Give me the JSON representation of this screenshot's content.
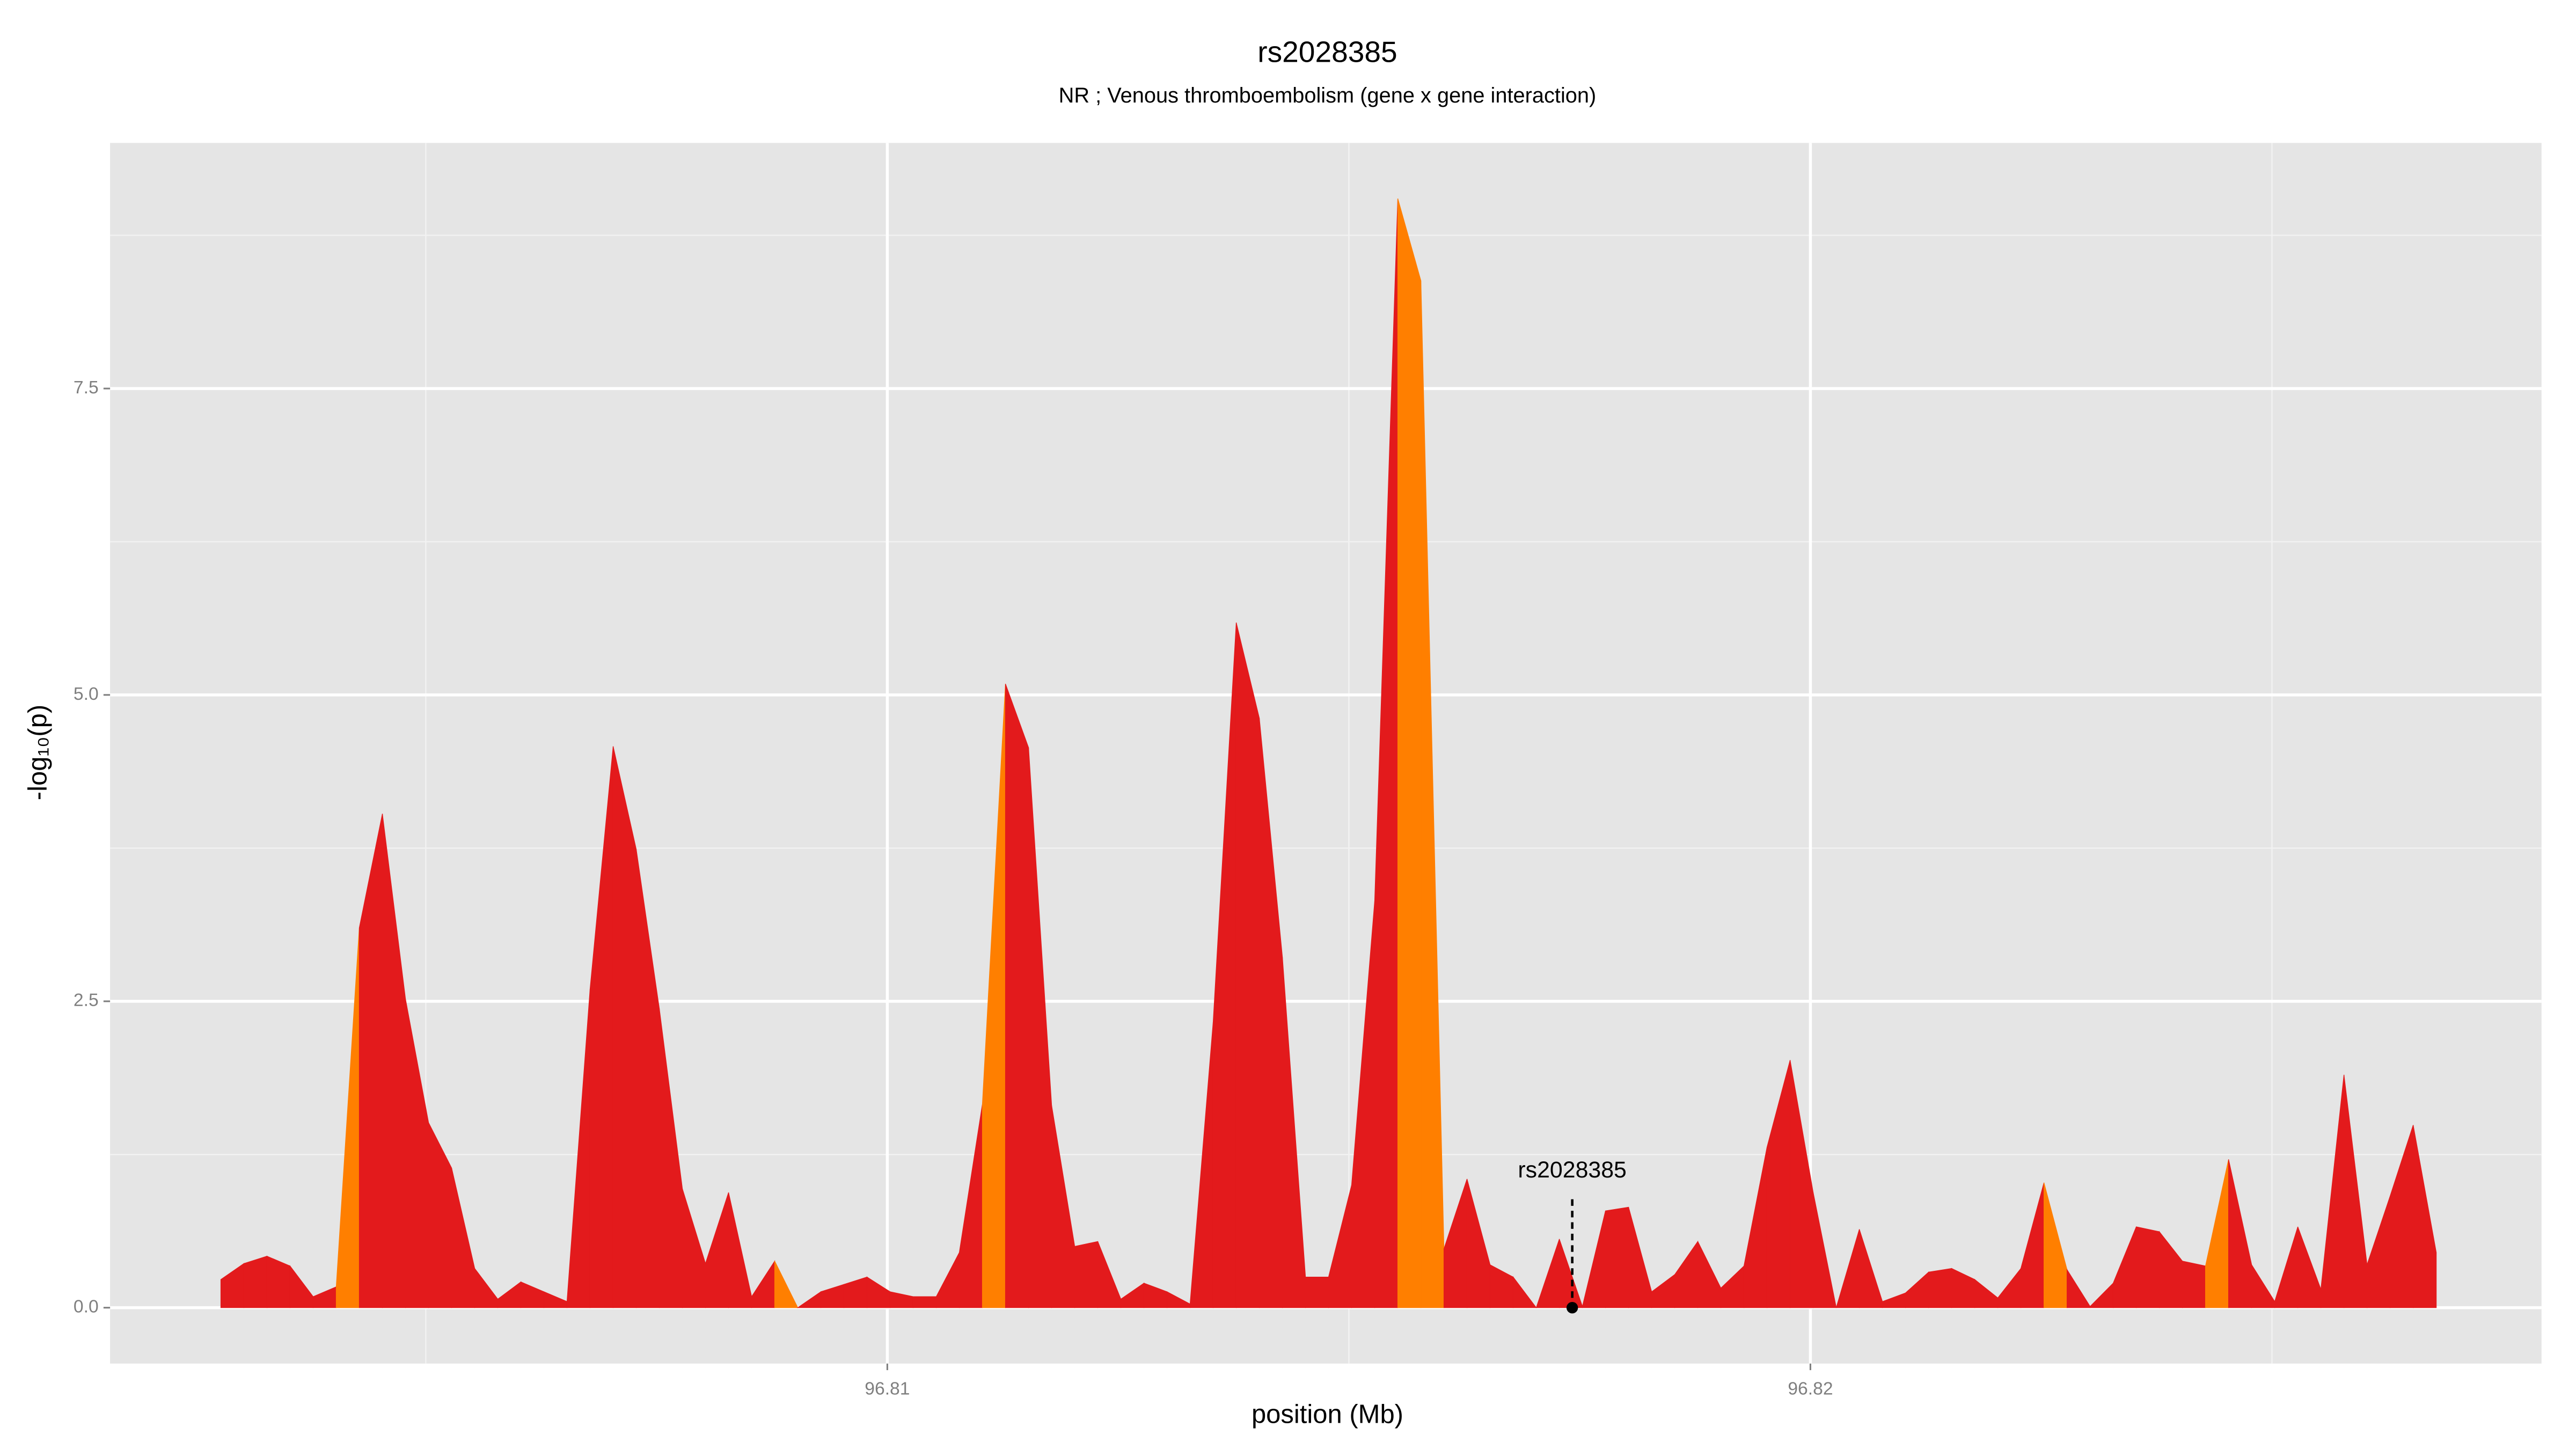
{
  "chart_data": {
    "type": "area",
    "title": "rs2028385",
    "subtitle": "NR ; Venous thromboembolism (gene x gene interaction)",
    "x_label": "position (Mb)",
    "y_label": "-log₁₀(p)",
    "x": [
      96.80278,
      96.80303,
      96.80328,
      96.80353,
      96.80378,
      96.80403,
      96.80428,
      96.80453,
      96.80478,
      96.80503,
      96.80528,
      96.80553,
      96.80578,
      96.80603,
      96.80628,
      96.80653,
      96.80678,
      96.80703,
      96.80728,
      96.80753,
      96.80778,
      96.80803,
      96.80828,
      96.80853,
      96.80878,
      96.80903,
      96.80928,
      96.80953,
      96.80978,
      96.81003,
      96.81028,
      96.81053,
      96.81078,
      96.81103,
      96.81128,
      96.81153,
      96.81178,
      96.81203,
      96.81228,
      96.81253,
      96.81278,
      96.81303,
      96.81328,
      96.81353,
      96.81378,
      96.81403,
      96.81428,
      96.81453,
      96.81478,
      96.81503,
      96.81528,
      96.81553,
      96.81578,
      96.81603,
      96.81628,
      96.81653,
      96.81678,
      96.81703,
      96.81728,
      96.81753,
      96.81778,
      96.81803,
      96.81828,
      96.81853,
      96.81878,
      96.81903,
      96.81928,
      96.81953,
      96.81978,
      96.82003,
      96.82028,
      96.82053,
      96.82078,
      96.82103,
      96.82128,
      96.82153,
      96.82178,
      96.82203,
      96.82228,
      96.82253,
      96.82278,
      96.82303,
      96.82328,
      96.82353,
      96.82378,
      96.82403,
      96.82428,
      96.82453,
      96.82478,
      96.82503,
      96.82528,
      96.82553,
      96.82578,
      96.82603,
      96.82628,
      96.82653,
      96.82678
    ],
    "values": [
      0.23,
      0.36,
      0.42,
      0.34,
      0.09,
      0.17,
      3.1,
      4.03,
      2.52,
      1.51,
      1.14,
      0.32,
      0.07,
      0.21,
      0.13,
      0.05,
      2.6,
      4.58,
      3.74,
      2.44,
      0.97,
      0.36,
      0.94,
      0.09,
      0.38,
      0,
      0.13,
      0.19,
      0.25,
      0.13,
      0.09,
      0.09,
      0.45,
      1.66,
      5.09,
      4.57,
      1.65,
      0.5,
      0.54,
      0.07,
      0.2,
      0.13,
      0.03,
      2.33,
      5.59,
      4.81,
      2.86,
      0.25,
      0.25,
      1.0,
      3.32,
      9.05,
      8.38,
      0.48,
      1.05,
      0.35,
      0.25,
      0,
      0.56,
      0.01,
      0.79,
      0.82,
      0.13,
      0.27,
      0.54,
      0.16,
      0.34,
      1.31,
      2.02,
      0.94,
      0,
      0.64,
      0.05,
      0.12,
      0.29,
      0.32,
      0.23,
      0.08,
      0.32,
      1.02,
      0.31,
      0.01,
      0.2,
      0.66,
      0.62,
      0.38,
      0.34,
      1.21,
      0.35,
      0.05,
      0.66,
      0.15,
      1.9,
      0.35,
      0.91,
      1.49,
      0.45
    ],
    "segment_colors": [
      "#e31a1c",
      "#e31a1c",
      "#e31a1c",
      "#e31a1c",
      "#e31a1c",
      "#ff7f00",
      "#e31a1c",
      "#e31a1c",
      "#e31a1c",
      "#e31a1c",
      "#e31a1c",
      "#e31a1c",
      "#e31a1c",
      "#e31a1c",
      "#e31a1c",
      "#e31a1c",
      "#e31a1c",
      "#e31a1c",
      "#e31a1c",
      "#e31a1c",
      "#e31a1c",
      "#e31a1c",
      "#e31a1c",
      "#e31a1c",
      "#ff7f00",
      "#e31a1c",
      "#e31a1c",
      "#e31a1c",
      "#e31a1c",
      "#e31a1c",
      "#e31a1c",
      "#e31a1c",
      "#e31a1c",
      "#ff7f00",
      "#e31a1c",
      "#e31a1c",
      "#e31a1c",
      "#e31a1c",
      "#e31a1c",
      "#e31a1c",
      "#e31a1c",
      "#e31a1c",
      "#e31a1c",
      "#e31a1c",
      "#e31a1c",
      "#e31a1c",
      "#e31a1c",
      "#e31a1c",
      "#e31a1c",
      "#e31a1c",
      "#e31a1c",
      "#ff7f00",
      "#ff7f00",
      "#e31a1c",
      "#e31a1c",
      "#e31a1c",
      "#e31a1c",
      "#e31a1c",
      "#e31a1c",
      "#e31a1c",
      "#e31a1c",
      "#e31a1c",
      "#e31a1c",
      "#e31a1c",
      "#e31a1c",
      "#e31a1c",
      "#e31a1c",
      "#e31a1c",
      "#e31a1c",
      "#e31a1c",
      "#e31a1c",
      "#e31a1c",
      "#e31a1c",
      "#e31a1c",
      "#e31a1c",
      "#e31a1c",
      "#e31a1c",
      "#e31a1c",
      "#e31a1c",
      "#ff7f00",
      "#e31a1c",
      "#e31a1c",
      "#e31a1c",
      "#e31a1c",
      "#e31a1c",
      "#e31a1c",
      "#ff7f00",
      "#e31a1c",
      "#e31a1c",
      "#e31a1c",
      "#e31a1c",
      "#e31a1c",
      "#e31a1c",
      "#e31a1c",
      "#e31a1c",
      "#e31a1c"
    ],
    "annotation": {
      "text": "rs2028385",
      "x": 96.81742,
      "y": 0
    },
    "xlim": [
      96.80158,
      96.82792
    ],
    "ylim": [
      -0.456,
      9.504
    ],
    "xticks": [
      96.81,
      96.82
    ],
    "yticks": [
      {
        "value": 0,
        "label": "0.0"
      },
      2.5,
      {
        "value": 5,
        "label": "5.0"
      },
      7.5
    ],
    "x_minor_ticks": [
      96.805,
      96.815,
      96.825
    ],
    "y_minor_ticks": [
      1.25,
      3.75,
      6.25,
      8.75
    ],
    "grid": true
  }
}
